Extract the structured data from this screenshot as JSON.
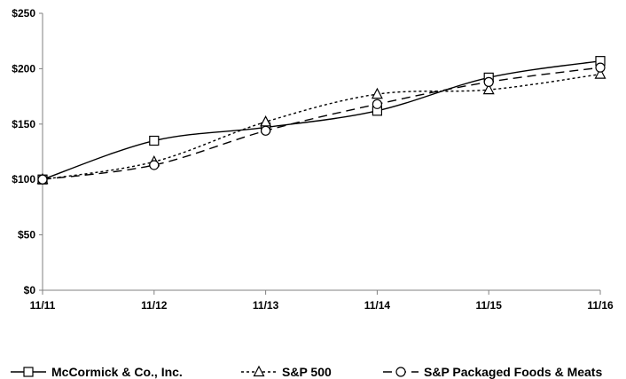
{
  "chart_data": {
    "type": "line",
    "title": "",
    "xlabel": "",
    "ylabel": "",
    "categories": [
      "11/11",
      "11/12",
      "11/13",
      "11/14",
      "11/15",
      "11/16"
    ],
    "ylim": [
      0,
      250
    ],
    "yticks": [
      0,
      50,
      100,
      150,
      200,
      250
    ],
    "ytick_labels": [
      "$0",
      "$50",
      "$100",
      "$150",
      "$200",
      "$250"
    ],
    "grid": false,
    "legend_position": "bottom",
    "series": [
      {
        "name": "McCormick & Co., Inc.",
        "values": [
          100,
          135,
          147,
          162,
          192,
          207
        ],
        "marker": "square",
        "line_style": "solid",
        "color": "#000000"
      },
      {
        "name": "S&P 500",
        "values": [
          100,
          116,
          152,
          177,
          181,
          195
        ],
        "marker": "triangle",
        "line_style": "dotted",
        "color": "#000000"
      },
      {
        "name": "S&P Packaged Foods & Meats",
        "values": [
          100,
          113,
          144,
          168,
          188,
          201
        ],
        "marker": "circle",
        "line_style": "dashed",
        "color": "#000000"
      }
    ]
  }
}
